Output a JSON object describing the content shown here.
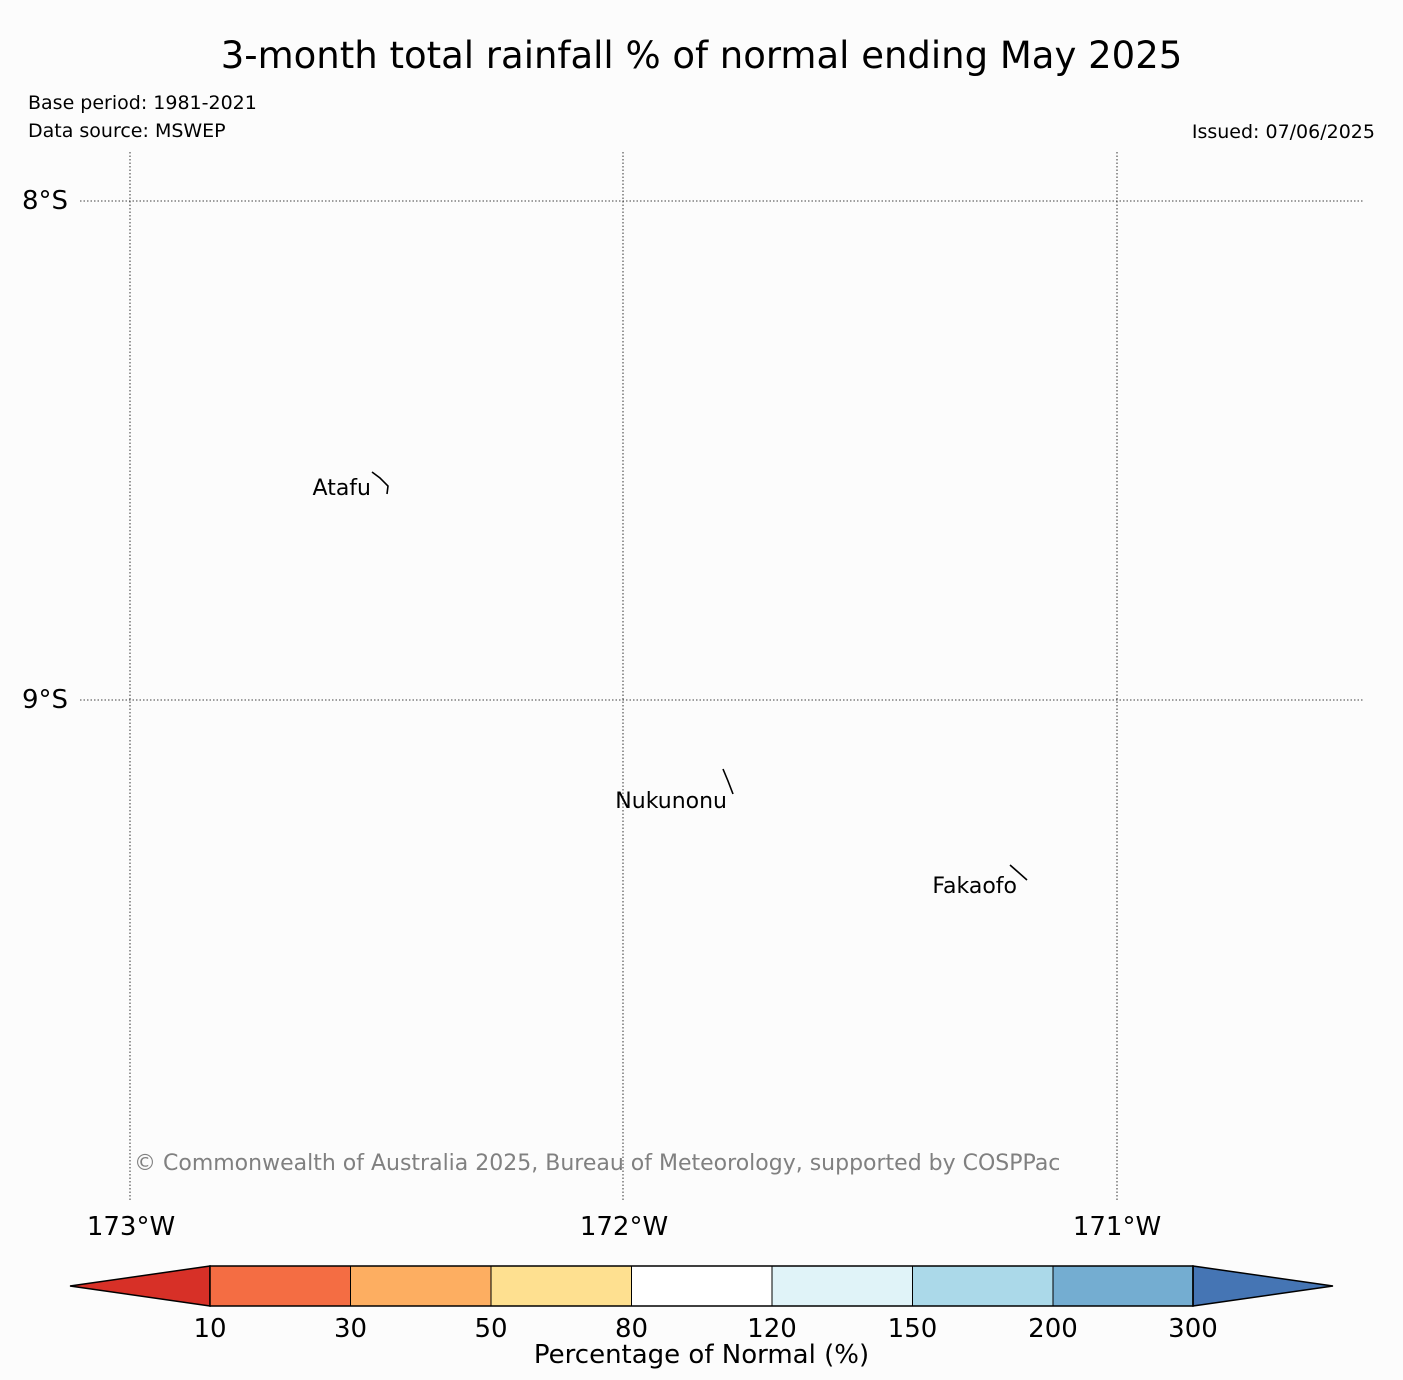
{
  "title": "3-month total rainfall % of normal ending May 2025",
  "base_period": "Base period: 1981-2021",
  "data_source": "Data source: MSWEP",
  "issued": "Issued: 07/06/2025",
  "map": {
    "latitude_labels": [
      "8°S",
      "9°S"
    ],
    "longitude_labels": [
      "173°W",
      "172°W",
      "171°W"
    ],
    "places": [
      {
        "name": "Atafu"
      },
      {
        "name": "Nukunonu"
      },
      {
        "name": "Fakaofo"
      }
    ],
    "gridlines": "dotted"
  },
  "copyright": "© Commonwealth of Australia 2025, Bureau of Meteorology, supported by COSPPac",
  "colorbar": {
    "label": "Percentage of Normal (%)",
    "ticks": [
      "10",
      "30",
      "50",
      "80",
      "120",
      "150",
      "200",
      "300"
    ],
    "colors": {
      "below_10": "#d73027",
      "10-30": "#f46d43",
      "30-50": "#fdae61",
      "50-80": "#fee090",
      "80-120": "#ffffff",
      "120-150": "#e0f3f8",
      "150-200": "#abd9e9",
      "200-300": "#74add1",
      "above_300": "#4575b4"
    }
  }
}
